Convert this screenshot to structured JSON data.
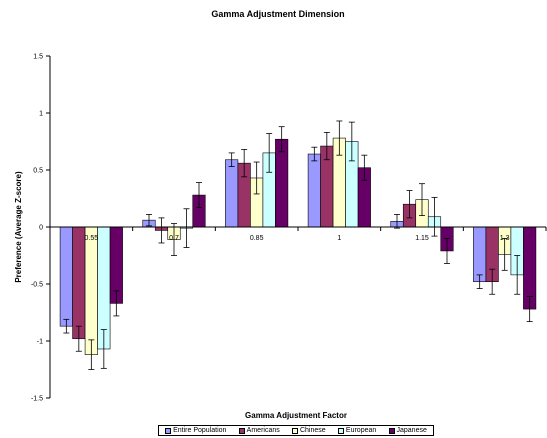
{
  "chart_data": {
    "type": "bar",
    "title": "Gamma Adjustment Dimension",
    "xlabel": "Gamma Adjustment Factor",
    "ylabel": "Preference (Average Z-score)",
    "categories": [
      "0.55",
      "0.7",
      "0.85",
      "1",
      "1.15",
      "1.3"
    ],
    "ylim": [
      -1.5,
      1.5
    ],
    "yticks": [
      -1.5,
      -1,
      -0.5,
      0,
      0.5,
      1,
      1.5
    ],
    "ytick_labels": [
      "-1.5",
      "-1",
      "-0.5",
      "0",
      "0.5",
      "1",
      "1.5"
    ],
    "grid": false,
    "legend_position": "bottom",
    "series": [
      {
        "name": "Entire Population",
        "color": "#9999ff",
        "values": [
          -0.87,
          0.06,
          0.59,
          0.64,
          0.05,
          -0.48
        ],
        "errors": [
          0.06,
          0.05,
          0.06,
          0.06,
          0.06,
          0.06
        ]
      },
      {
        "name": "Americans",
        "color": "#993366",
        "values": [
          -0.98,
          -0.03,
          0.56,
          0.71,
          0.2,
          -0.48
        ],
        "errors": [
          0.11,
          0.11,
          0.12,
          0.12,
          0.12,
          0.11
        ]
      },
      {
        "name": "Chinese",
        "color": "#ffffcc",
        "values": [
          -1.12,
          -0.11,
          0.43,
          0.78,
          0.24,
          -0.24
        ],
        "errors": [
          0.13,
          0.14,
          0.14,
          0.15,
          0.14,
          0.14
        ]
      },
      {
        "name": "European",
        "color": "#ccffff",
        "values": [
          -1.07,
          -0.01,
          0.65,
          0.75,
          0.09,
          -0.42
        ],
        "errors": [
          0.17,
          0.17,
          0.17,
          0.17,
          0.17,
          0.17
        ]
      },
      {
        "name": "Japanese",
        "color": "#660066",
        "values": [
          -0.67,
          0.28,
          0.77,
          0.52,
          -0.21,
          -0.72
        ],
        "errors": [
          0.11,
          0.11,
          0.11,
          0.11,
          0.11,
          0.11
        ]
      }
    ]
  }
}
